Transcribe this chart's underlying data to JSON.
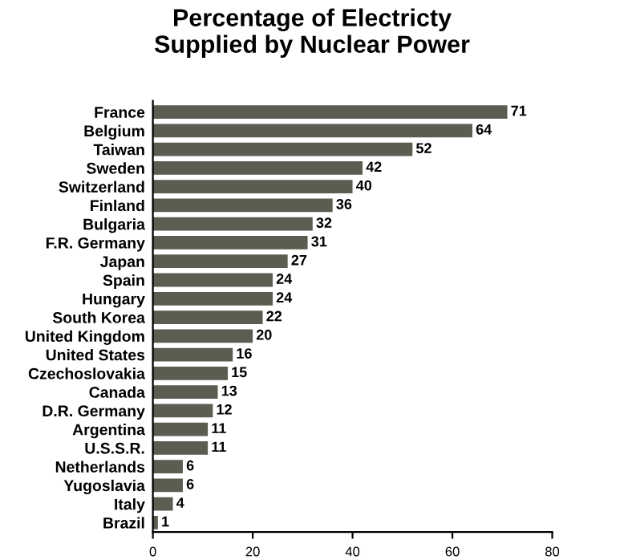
{
  "chart_data": {
    "type": "bar",
    "orientation": "horizontal",
    "title": "Percentage of Electricty\nSupplied by Nuclear Power",
    "categories": [
      "France",
      "Belgium",
      "Taiwan",
      "Sweden",
      "Switzerland",
      "Finland",
      "Bulgaria",
      "F.R. Germany",
      "Japan",
      "Spain",
      "Hungary",
      "South Korea",
      "United Kingdom",
      "United States",
      "Czechoslovakia",
      "Canada",
      "D.R. Germany",
      "Argentina",
      "U.S.S.R.",
      "Netherlands",
      "Yugoslavia",
      "Italy",
      "Brazil"
    ],
    "values": [
      71,
      64,
      52,
      42,
      40,
      36,
      32,
      31,
      27,
      24,
      24,
      22,
      20,
      16,
      15,
      13,
      12,
      11,
      11,
      6,
      6,
      4,
      1
    ],
    "color": "#5b5d50",
    "xlim": [
      0,
      80
    ],
    "xticks": [
      0,
      20,
      40,
      60,
      80
    ],
    "data_labels": true,
    "grid": false,
    "legend": false
  }
}
